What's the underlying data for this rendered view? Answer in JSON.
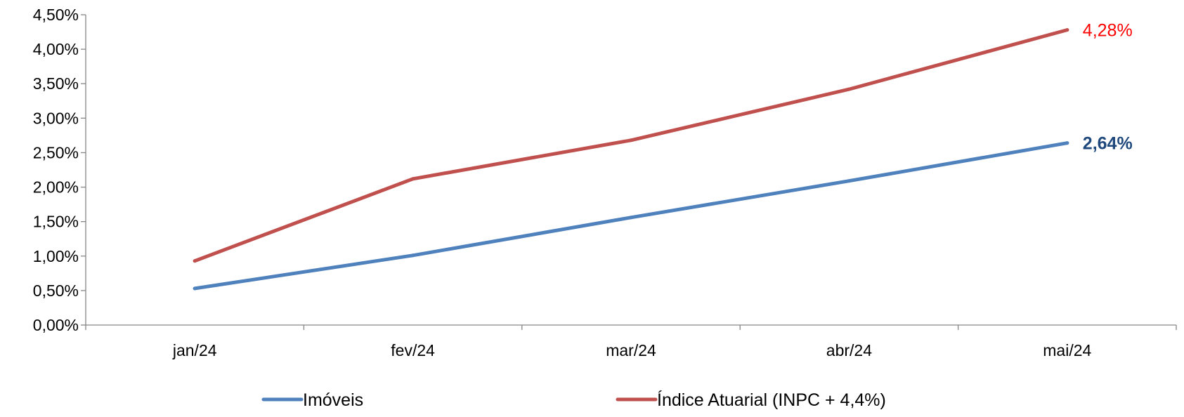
{
  "chart_data": {
    "type": "line",
    "categories": [
      "jan/24",
      "fev/24",
      "mar/24",
      "abr/24",
      "mai/24"
    ],
    "ylim": [
      0,
      4.5
    ],
    "yticks": [
      0,
      0.5,
      1.0,
      1.5,
      2.0,
      2.5,
      3.0,
      3.5,
      4.0,
      4.5
    ],
    "ytick_labels": [
      "0,00%",
      "0,50%",
      "1,00%",
      "1,50%",
      "2,00%",
      "2,50%",
      "3,00%",
      "3,50%",
      "4,00%",
      "4,50%"
    ],
    "y_unit": "%",
    "grid": false,
    "legend_position": "bottom",
    "series": [
      {
        "name": "Imóveis",
        "values": [
          0.53,
          1.01,
          1.56,
          2.09,
          2.64
        ],
        "color": "#4F81BD",
        "end_label": "2,64%",
        "end_label_color": "#1F497D",
        "end_label_bold": true
      },
      {
        "name": "Índice Atuarial (INPC + 4,4%)",
        "values": [
          0.93,
          2.12,
          2.68,
          3.42,
          4.28
        ],
        "color": "#C0504D",
        "end_label": "4,28%",
        "end_label_color": "#FF0000",
        "end_label_bold": false
      }
    ]
  }
}
